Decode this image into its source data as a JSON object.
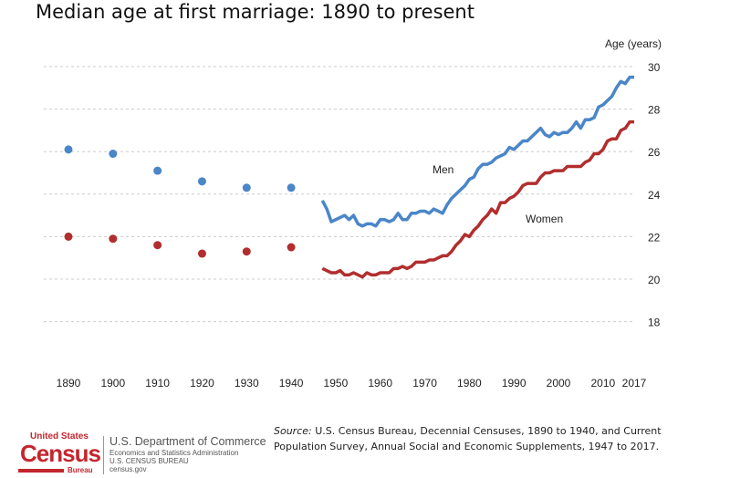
{
  "chart_data": {
    "type": "line",
    "title": "Median age at first marriage: 1890 to present",
    "ylabel": "Age (years)",
    "xlabel": "",
    "ylim": [
      16,
      30
    ],
    "xlim": [
      1890,
      2017
    ],
    "grid": true,
    "y_ticks": [
      18,
      20,
      22,
      24,
      26,
      28,
      30
    ],
    "x_ticks": [
      1890,
      1900,
      1910,
      1920,
      1930,
      1940,
      1950,
      1960,
      1970,
      1980,
      1990,
      2000,
      2010,
      2017
    ],
    "colors": {
      "men": "#4a86c8",
      "women": "#b22e2e"
    },
    "series": [
      {
        "name": "Men",
        "label": "Men",
        "decennial": {
          "x": [
            1890,
            1900,
            1910,
            1920,
            1930,
            1940
          ],
          "y": [
            26.1,
            25.9,
            25.1,
            24.6,
            24.3,
            24.3
          ]
        },
        "annual": {
          "x_start": 1947,
          "y": [
            23.7,
            23.3,
            22.7,
            22.8,
            22.9,
            23.0,
            22.8,
            23.0,
            22.6,
            22.5,
            22.6,
            22.6,
            22.5,
            22.8,
            22.8,
            22.7,
            22.8,
            23.1,
            22.8,
            22.8,
            23.1,
            23.1,
            23.2,
            23.2,
            23.1,
            23.3,
            23.2,
            23.1,
            23.5,
            23.8,
            24.0,
            24.2,
            24.4,
            24.7,
            24.8,
            25.2,
            25.4,
            25.4,
            25.5,
            25.7,
            25.8,
            25.9,
            26.2,
            26.1,
            26.3,
            26.5,
            26.5,
            26.7,
            26.9,
            27.1,
            26.8,
            26.7,
            26.9,
            26.8,
            26.9,
            26.9,
            27.1,
            27.4,
            27.1,
            27.5,
            27.5,
            27.6,
            28.1,
            28.2,
            28.4,
            28.6,
            29.0,
            29.3,
            29.2,
            29.5,
            29.5
          ]
        }
      },
      {
        "name": "Women",
        "label": "Women",
        "decennial": {
          "x": [
            1890,
            1900,
            1910,
            1920,
            1930,
            1940
          ],
          "y": [
            22.0,
            21.9,
            21.6,
            21.2,
            21.3,
            21.5
          ]
        },
        "annual": {
          "x_start": 1947,
          "y": [
            20.5,
            20.4,
            20.3,
            20.3,
            20.4,
            20.2,
            20.2,
            20.3,
            20.2,
            20.1,
            20.3,
            20.2,
            20.2,
            20.3,
            20.3,
            20.3,
            20.5,
            20.5,
            20.6,
            20.5,
            20.6,
            20.8,
            20.8,
            20.8,
            20.9,
            20.9,
            21.0,
            21.1,
            21.1,
            21.3,
            21.6,
            21.8,
            22.1,
            22.0,
            22.3,
            22.5,
            22.8,
            23.0,
            23.3,
            23.1,
            23.6,
            23.6,
            23.8,
            23.9,
            24.1,
            24.4,
            24.5,
            24.5,
            24.5,
            24.8,
            25.0,
            25.0,
            25.1,
            25.1,
            25.1,
            25.3,
            25.3,
            25.3,
            25.3,
            25.5,
            25.6,
            25.9,
            25.9,
            26.1,
            26.5,
            26.6,
            26.6,
            27.0,
            27.1,
            27.4,
            27.4
          ]
        }
      }
    ]
  },
  "source": {
    "label": "Source:",
    "text": "U.S. Census Bureau, Decennial Censuses, 1890 to 1940, and Current Population Survey, Annual Social and Economic Supplements, 1947 to 2017."
  },
  "footer": {
    "logo_united_states": "United States",
    "logo_census": "Census",
    "logo_bureau": "Bureau",
    "dept": "U.S. Department of Commerce",
    "line2": "Economics and Statistics Administration",
    "line3": "U.S. CENSUS BUREAU",
    "line4": "census.gov"
  }
}
